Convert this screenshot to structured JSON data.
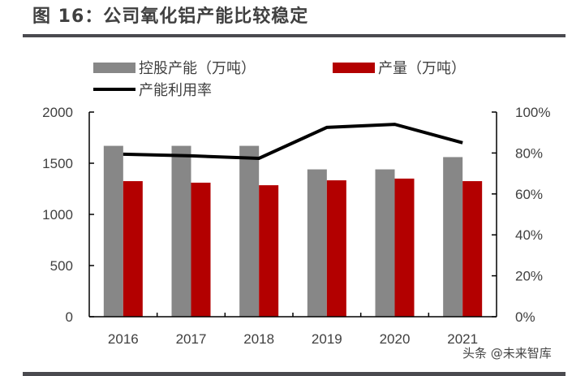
{
  "header": {
    "title": "图 16：公司氧化铝产能比较稳定"
  },
  "watermark": "头条 @未来智库",
  "colors": {
    "capacity": "#878787",
    "output": "#b30000",
    "utilization": "#000000",
    "axis_text": "#404040"
  },
  "chart_data": {
    "type": "bar",
    "title": "公司氧化铝产能比较稳定",
    "categories": [
      "2016",
      "2017",
      "2018",
      "2019",
      "2020",
      "2021"
    ],
    "series": [
      {
        "name": "控股产能（万吨）",
        "type": "bar",
        "axis": "left",
        "values": [
          1670,
          1670,
          1670,
          1440,
          1440,
          1560
        ]
      },
      {
        "name": "产量（万吨）",
        "type": "bar",
        "axis": "left",
        "values": [
          1325,
          1310,
          1285,
          1333,
          1350,
          1325
        ]
      },
      {
        "name": "产能利用率",
        "type": "line",
        "axis": "right",
        "values": [
          0.794,
          0.786,
          0.774,
          0.925,
          0.94,
          0.85
        ]
      }
    ],
    "left_axis": {
      "ylim": [
        0,
        2000
      ],
      "ticks": [
        0,
        500,
        1000,
        1500,
        2000
      ],
      "tick_labels": [
        "0",
        "500",
        "1000",
        "1500",
        "2000"
      ]
    },
    "right_axis": {
      "ylim": [
        0,
        1
      ],
      "ticks": [
        0,
        0.2,
        0.4,
        0.6,
        0.8,
        1.0
      ],
      "tick_labels": [
        "0%",
        "20%",
        "40%",
        "60%",
        "80%",
        "100%"
      ]
    },
    "xlabel": "",
    "ylabel": "",
    "grid": false,
    "legend_position": "top"
  }
}
